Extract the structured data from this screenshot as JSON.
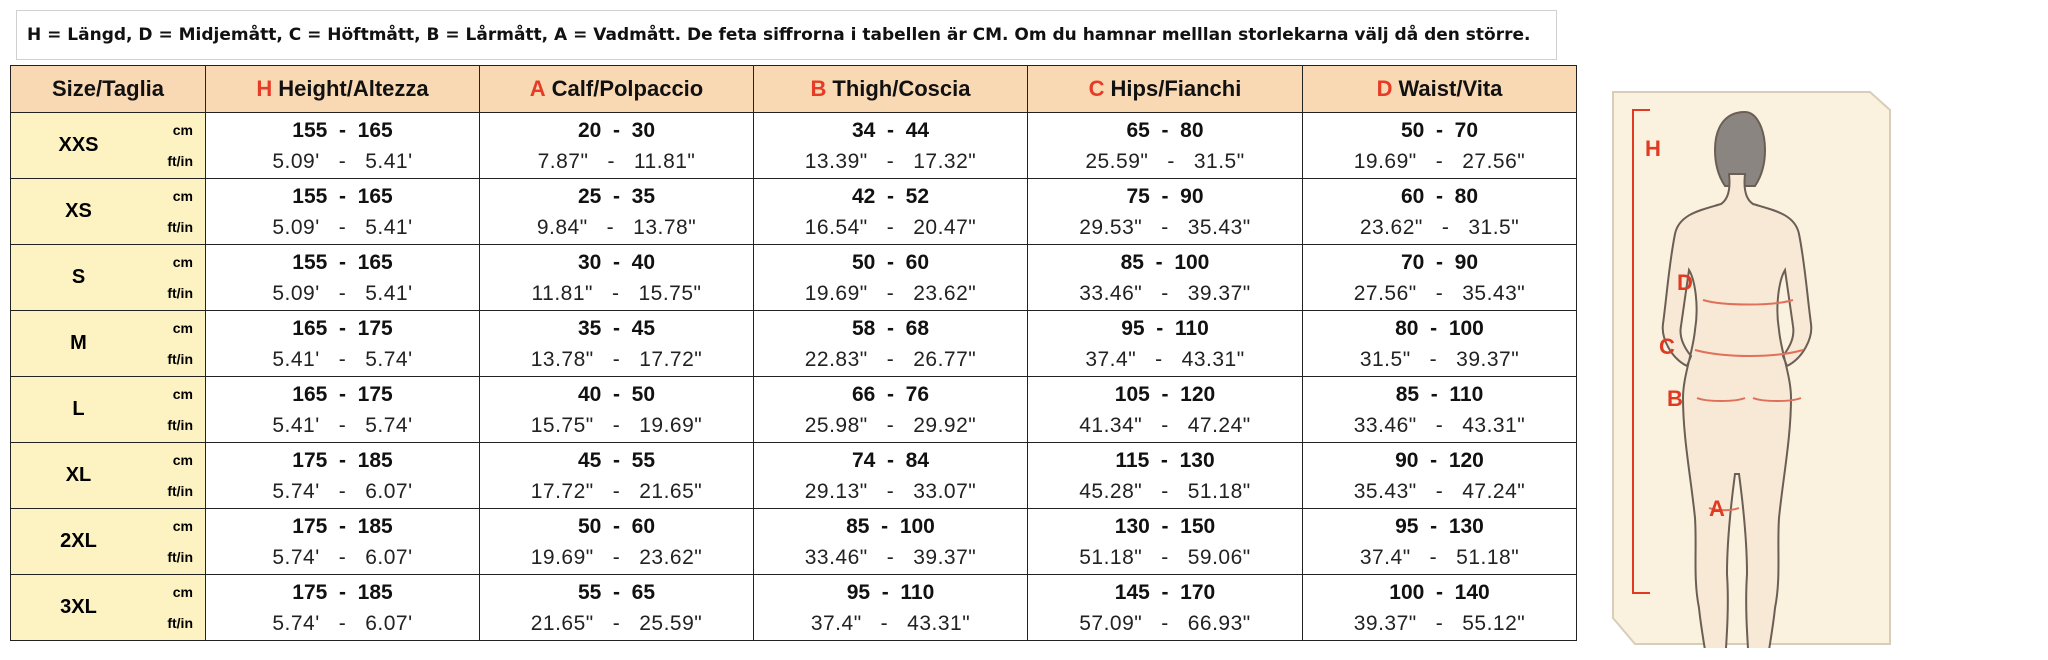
{
  "note": "H = Längd, D = Midjemått, C = Höftmått, B = Lårmått, A = Vadmått. De feta siffrorna i tabellen är CM. Om du hamnar melllan storlekarna välj då den större.",
  "table": {
    "size_header": "Size/Taglia",
    "columns": [
      {
        "letter": "H",
        "label": "Height/Altezza"
      },
      {
        "letter": "A",
        "label": "Calf/Polpaccio"
      },
      {
        "letter": "B",
        "label": "Thigh/Coscia"
      },
      {
        "letter": "C",
        "label": "Hips/Fianchi"
      },
      {
        "letter": "D",
        "label": "Waist/Vita"
      }
    ],
    "rows": [
      {
        "size": "XXS",
        "lines": [
          {
            "unit": "cm",
            "values": [
              "155  -  165",
              "20  -  30",
              "34  -  44",
              "65  -  80",
              "50  -  70"
            ]
          },
          {
            "unit": "ft/in",
            "values": [
              "5.09'   -   5.41'",
              "7.87\"   -   11.81\"",
              "13.39\"   -   17.32\"",
              "25.59\"   -   31.5\"",
              "19.69\"   -   27.56\""
            ]
          }
        ]
      },
      {
        "size": "XS",
        "lines": [
          {
            "unit": "cm",
            "values": [
              "155  -  165",
              "25  -  35",
              "42  -  52",
              "75  -  90",
              "60  -  80"
            ]
          },
          {
            "unit": "ft/in",
            "values": [
              "5.09'   -   5.41'",
              "9.84\"   -   13.78\"",
              "16.54\"   -   20.47\"",
              "29.53\"   -   35.43\"",
              "23.62\"   -   31.5\""
            ]
          }
        ]
      },
      {
        "size": "S",
        "lines": [
          {
            "unit": "cm",
            "values": [
              "155  -  165",
              "30  -  40",
              "50  -  60",
              "85  -  100",
              "70  -  90"
            ]
          },
          {
            "unit": "ft/in",
            "values": [
              "5.09'   -   5.41'",
              "11.81\"   -   15.75\"",
              "19.69\"   -   23.62\"",
              "33.46\"   -   39.37\"",
              "27.56\"   -   35.43\""
            ]
          }
        ]
      },
      {
        "size": "M",
        "lines": [
          {
            "unit": "cm",
            "values": [
              "165  -  175",
              "35  -  45",
              "58  -  68",
              "95  -  110",
              "80  -  100"
            ]
          },
          {
            "unit": "ft/in",
            "values": [
              "5.41'   -   5.74'",
              "13.78\"   -   17.72\"",
              "22.83\"   -   26.77\"",
              "37.4\"   -   43.31\"",
              "31.5\"   -   39.37\""
            ]
          }
        ]
      },
      {
        "size": "L",
        "lines": [
          {
            "unit": "cm",
            "values": [
              "165  -  175",
              "40  -  50",
              "66  -  76",
              "105  -  120",
              "85  -  110"
            ]
          },
          {
            "unit": "ft/in",
            "values": [
              "5.41'   -   5.74'",
              "15.75\"   -   19.69\"",
              "25.98\"   -   29.92\"",
              "41.34\"   -   47.24\"",
              "33.46\"   -   43.31\""
            ]
          }
        ]
      },
      {
        "size": "XL",
        "lines": [
          {
            "unit": "cm",
            "values": [
              "175  -  185",
              "45  -  55",
              "74  -  84",
              "115  -  130",
              "90  -  120"
            ]
          },
          {
            "unit": "ft/in",
            "values": [
              "5.74'   -   6.07'",
              "17.72\"   -   21.65\"",
              "29.13\"   -   33.07\"",
              "45.28\"   -   51.18\"",
              "35.43\"   -   47.24\""
            ]
          }
        ]
      },
      {
        "size": "2XL",
        "lines": [
          {
            "unit": "cm",
            "values": [
              "175  -  185",
              "50  -  60",
              "85  -  100",
              "130  -  150",
              "95  -  130"
            ]
          },
          {
            "unit": "ft/in",
            "values": [
              "5.74'   -   6.07'",
              "19.69\"   -   23.62\"",
              "33.46\"   -   39.37\"",
              "51.18\"   -   59.06\"",
              "37.4\"   -   51.18\""
            ]
          }
        ]
      },
      {
        "size": "3XL",
        "lines": [
          {
            "unit": "cm",
            "values": [
              "175  -  185",
              "55  -  65",
              "95  -  110",
              "145  -  170",
              "100  -  140"
            ]
          },
          {
            "unit": "ft/in",
            "values": [
              "5.74'   -   6.07'",
              "21.65\"   -   25.59\"",
              "37.4\"   -   43.31\"",
              "57.09\"   -   66.93\"",
              "39.37\"   -   55.12\""
            ]
          }
        ]
      }
    ]
  },
  "figure": {
    "labels": [
      "H",
      "D",
      "C",
      "B",
      "A"
    ]
  }
}
